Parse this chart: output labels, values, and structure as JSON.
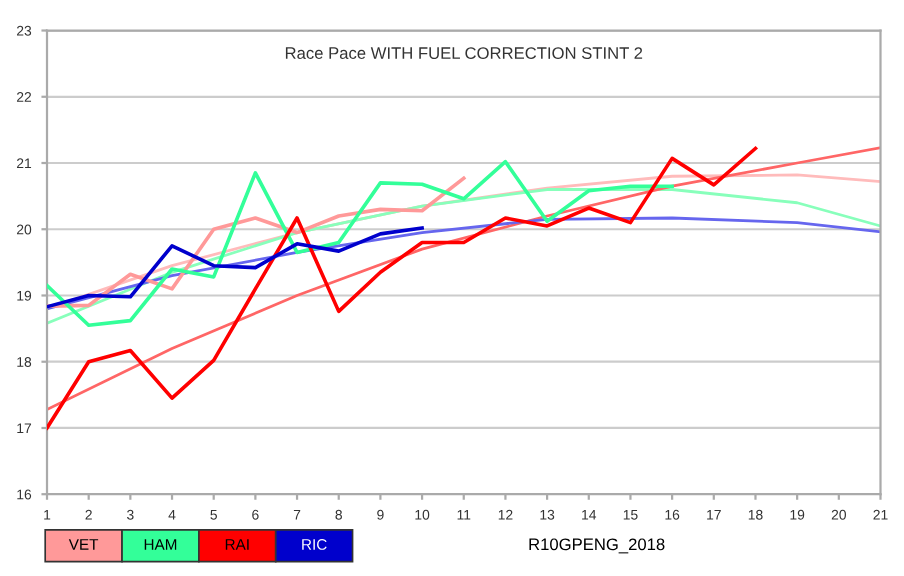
{
  "chart_data": {
    "type": "line",
    "title": "Race Pace WITH FUEL CORRECTION STINT 2",
    "xlim": [
      1,
      21
    ],
    "xticks": [
      1,
      2,
      3,
      4,
      5,
      6,
      7,
      8,
      9,
      10,
      11,
      12,
      13,
      14,
      15,
      16,
      17,
      18,
      19,
      20,
      21
    ],
    "ylim": [
      16,
      23
    ],
    "yticks": [
      16,
      17,
      18,
      19,
      20,
      21,
      22,
      23
    ],
    "grid": "y",
    "legend": "bottom",
    "marker": "none",
    "line_style": "solid",
    "annotations": [
      "R10GPENG_2018"
    ],
    "series": [
      {
        "name": "VET",
        "color": "#ff9999",
        "x": [
          1,
          2,
          3,
          4,
          5,
          6,
          7,
          8,
          9,
          10,
          11
        ],
        "values": [
          18.84,
          18.85,
          19.32,
          19.1,
          20.0,
          20.17,
          19.95,
          20.2,
          20.3,
          20.28,
          20.77
        ]
      },
      {
        "name": "HAM",
        "color": "#33ff99",
        "x": [
          1,
          2,
          3,
          4,
          5,
          6,
          7,
          8,
          9,
          10,
          11,
          12,
          13,
          14,
          15,
          16
        ],
        "values": [
          19.15,
          18.55,
          18.62,
          19.4,
          19.28,
          20.85,
          19.65,
          19.8,
          20.7,
          20.68,
          20.46,
          21.02,
          20.12,
          20.58,
          20.65,
          20.65
        ]
      },
      {
        "name": "RAI",
        "color": "#ff0000",
        "x": [
          1,
          2,
          3,
          4,
          5,
          6,
          7,
          8,
          9,
          10,
          11,
          12,
          13,
          14,
          15,
          16,
          17,
          18
        ],
        "values": [
          17.0,
          18.0,
          18.17,
          17.45,
          18.02,
          19.1,
          20.17,
          18.76,
          19.35,
          19.8,
          19.8,
          20.17,
          20.05,
          20.32,
          20.1,
          21.07,
          20.67,
          21.22
        ]
      },
      {
        "name": "RIC",
        "color": "#0000cc",
        "x": [
          1,
          2,
          3,
          4,
          5,
          6,
          7,
          8,
          9,
          10
        ],
        "values": [
          18.83,
          19.0,
          18.98,
          19.75,
          19.45,
          19.42,
          19.78,
          19.67,
          19.93,
          20.02
        ]
      },
      {
        "color": "#ffbbbb",
        "x": [
          1,
          4,
          7,
          10,
          13,
          16,
          19,
          21
        ],
        "values": [
          18.8,
          19.45,
          19.95,
          20.35,
          20.62,
          20.8,
          20.82,
          20.72
        ]
      },
      {
        "color": "#88ffbb",
        "x": [
          1,
          4,
          7,
          10,
          13,
          16,
          19,
          21
        ],
        "values": [
          18.58,
          19.35,
          19.95,
          20.35,
          20.6,
          20.6,
          20.4,
          20.05
        ]
      },
      {
        "color": "#ff6666",
        "x": [
          1,
          4,
          7,
          10,
          13,
          16,
          19,
          21
        ],
        "values": [
          17.28,
          18.2,
          19.0,
          19.7,
          20.2,
          20.65,
          21.0,
          21.23
        ]
      },
      {
        "color": "#6666ee",
        "x": [
          1,
          4,
          7,
          10,
          13,
          16,
          19,
          21
        ],
        "values": [
          18.8,
          19.3,
          19.65,
          19.95,
          20.15,
          20.17,
          20.1,
          19.96
        ]
      }
    ]
  }
}
